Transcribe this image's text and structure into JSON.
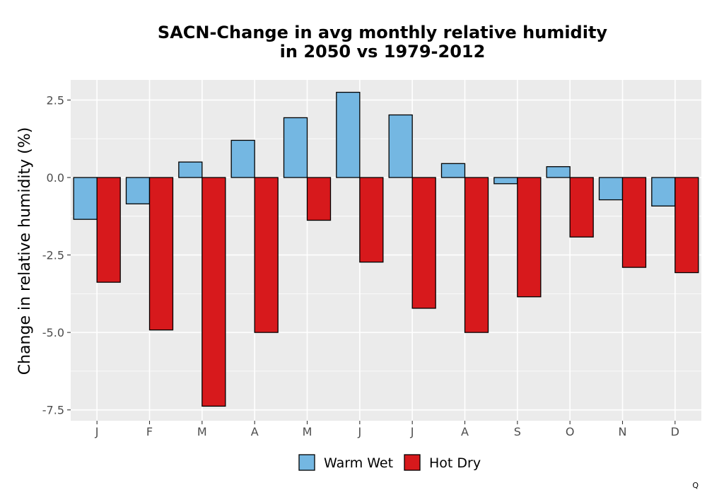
{
  "chart_data": {
    "type": "bar",
    "title_lines": [
      "SACN-Change in avg monthly relative humidity",
      "in 2050 vs 1979-2012"
    ],
    "xlabel": "",
    "ylabel": "Change in relative humidity (%)",
    "categories": [
      "J",
      "F",
      "M",
      "A",
      "M",
      "J",
      "J",
      "A",
      "S",
      "O",
      "N",
      "D"
    ],
    "series": [
      {
        "name": "Warm Wet",
        "color": "#74b7e2",
        "values": [
          -1.35,
          -0.85,
          0.5,
          1.2,
          1.93,
          2.75,
          2.02,
          0.45,
          -0.2,
          0.35,
          -0.72,
          -0.92
        ]
      },
      {
        "name": "Hot Dry",
        "color": "#d7191c",
        "values": [
          -3.38,
          -4.92,
          -7.38,
          -5.0,
          -1.38,
          -2.73,
          -4.22,
          -5.0,
          -3.85,
          -1.92,
          -2.9,
          -3.07
        ]
      }
    ],
    "ylim": [
      -7.85,
      3.15
    ],
    "yticks": [
      2.5,
      0.0,
      -2.5,
      -5.0,
      -7.5
    ],
    "ytick_labels": [
      "2.5",
      "0.0",
      "-2.5",
      "-5.0",
      "-7.5"
    ],
    "grid": true,
    "legend_position": "bottom"
  },
  "corner_mark": "Q"
}
